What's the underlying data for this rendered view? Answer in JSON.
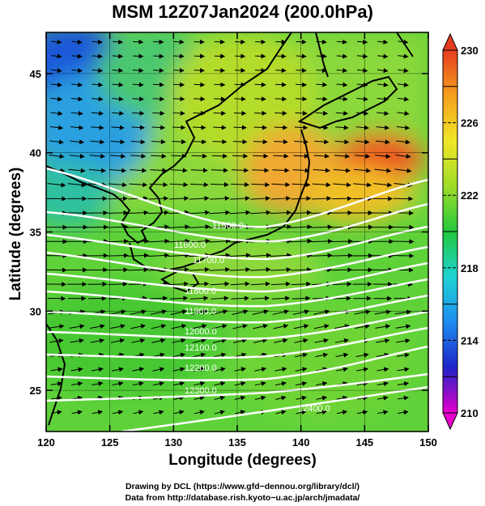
{
  "title": "MSM 12Z07Jan2024 (200.0hPa)",
  "x_axis": {
    "title": "Longitude (degrees)",
    "ticks": [
      "120",
      "125",
      "130",
      "135",
      "140",
      "145",
      "150"
    ],
    "range": [
      120,
      150
    ]
  },
  "y_axis": {
    "title": "Latitude  (degrees)",
    "ticks": [
      "25",
      "30",
      "35",
      "40",
      "45"
    ],
    "range": [
      22.4,
      47.6
    ]
  },
  "colorbar": {
    "labels": [
      "230",
      "226",
      "222",
      "218",
      "214",
      "210"
    ],
    "min": 210,
    "max": 230,
    "colors": [
      "#e600cc",
      "#1e24c8",
      "#1e8cf0",
      "#1ed2d2",
      "#22c83c",
      "#a0dc28",
      "#f0e628",
      "#f5a01e",
      "#e63c1e"
    ]
  },
  "contours": {
    "labels": [
      "11500.0",
      "11600.0",
      "11700.0",
      "11800.0",
      "11900.0",
      "12000.0",
      "12100.0",
      "12200.0",
      "12300.0",
      "12400.0"
    ]
  },
  "footer": {
    "line1": "Drawing by DCL (https://www.gfd−dennou.org/library/dcl/)",
    "line2": "Data from http://database.rish.kyoto−u.ac.jp/arch/jmadata/"
  }
}
